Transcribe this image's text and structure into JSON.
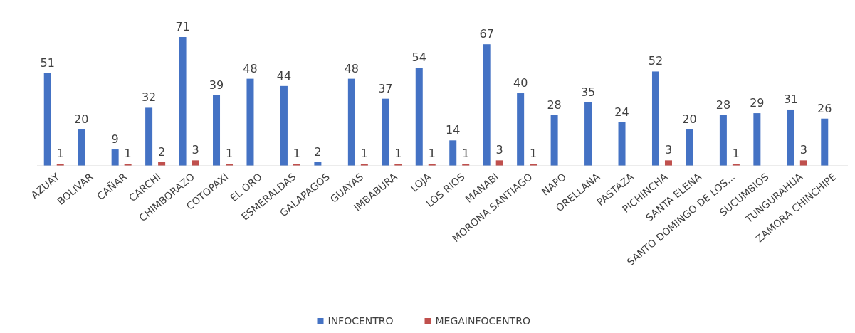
{
  "chart_data": {
    "type": "bar",
    "categories": [
      "AZUAY",
      "BOLIVAR",
      "CAÑAR",
      "CARCHI",
      "CHIMBORAZO",
      "COTOPAXI",
      "EL ORO",
      "ESMERALDAS",
      "GALAPAGOS",
      "GUAYAS",
      "IMBABURA",
      "LOJA",
      "LOS RIOS",
      "MANABI",
      "MORONA SANTIAGO",
      "NAPO",
      "ORELLANA",
      "PASTAZA",
      "PICHINCHA",
      "SANTA ELENA",
      "SANTO DOMINGO DE LOS...",
      "SUCUMBIOS",
      "TUNGURAHUA",
      "ZAMORA CHINCHIPE"
    ],
    "series": [
      {
        "name": "INFOCENTRO",
        "color": "#4472c4",
        "values": [
          51,
          20,
          9,
          32,
          71,
          39,
          48,
          44,
          2,
          48,
          37,
          54,
          14,
          67,
          40,
          28,
          35,
          24,
          52,
          20,
          28,
          29,
          31,
          26
        ]
      },
      {
        "name": "MEGAINFOCENTRO",
        "color": "#c0504d",
        "values": [
          1,
          null,
          1,
          2,
          3,
          1,
          null,
          1,
          null,
          1,
          1,
          1,
          1,
          3,
          1,
          null,
          null,
          null,
          3,
          null,
          1,
          null,
          3,
          null
        ]
      }
    ],
    "data_labels": true,
    "legend": "bottom"
  }
}
